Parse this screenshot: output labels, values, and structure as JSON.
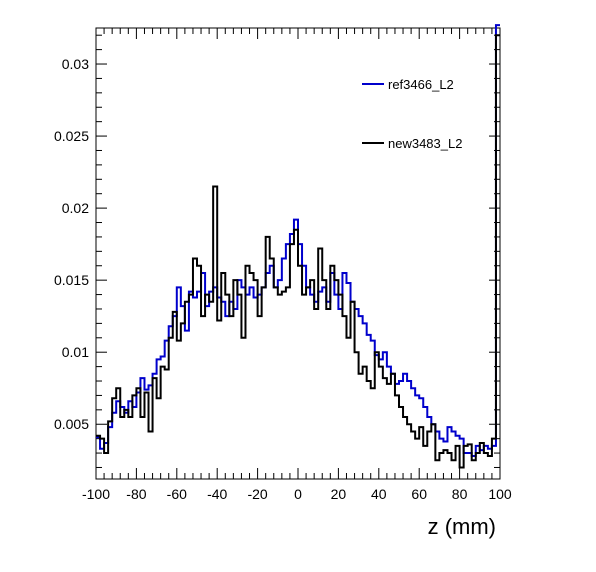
{
  "chart_data": {
    "type": "line",
    "title": "",
    "xlabel": "z (mm)",
    "ylabel": "",
    "xlim": [
      -100,
      100
    ],
    "ylim": [
      0.0012,
      0.0325
    ],
    "x_ticks": [
      -100,
      -80,
      -60,
      -40,
      -20,
      0,
      20,
      40,
      60,
      80,
      100
    ],
    "x_tick_labels": [
      "-100",
      "-80",
      "-60",
      "-40",
      "-20",
      "0",
      "20",
      "40",
      "60",
      "80",
      "100"
    ],
    "y_ticks": [
      0.005,
      0.01,
      0.015,
      0.02,
      0.025,
      0.03
    ],
    "y_tick_labels": [
      "0.005",
      "0.01",
      "0.015",
      "0.02",
      "0.025",
      "0.03"
    ],
    "legend_position": "top-right",
    "bin_width": 2,
    "bin_edges_start": -100,
    "series": [
      {
        "name": "ref3466_L2",
        "color": "#0000cc",
        "values": [
          0.0041,
          0.0033,
          0.0037,
          0.0048,
          0.0058,
          0.0066,
          0.0062,
          0.0058,
          0.0066,
          0.0062,
          0.0072,
          0.0082,
          0.0074,
          0.0077,
          0.0085,
          0.0095,
          0.0097,
          0.0108,
          0.0118,
          0.0125,
          0.0145,
          0.0132,
          0.0115,
          0.0142,
          0.0138,
          0.0142,
          0.0155,
          0.0132,
          0.0142,
          0.0145,
          0.0138,
          0.0135,
          0.0125,
          0.0135,
          0.013,
          0.015,
          0.0145,
          0.014,
          0.0145,
          0.0138,
          0.014,
          0.0145,
          0.0155,
          0.016,
          0.0145,
          0.015,
          0.0165,
          0.0175,
          0.0182,
          0.0192,
          0.0175,
          0.016,
          0.0145,
          0.014,
          0.0135,
          0.0142,
          0.0145,
          0.0135,
          0.0155,
          0.014,
          0.013,
          0.0155,
          0.0148,
          0.0135,
          0.013,
          0.0125,
          0.012,
          0.0112,
          0.0108,
          0.0098,
          0.0095,
          0.01,
          0.009,
          0.0085,
          0.0078,
          0.008,
          0.0085,
          0.008,
          0.0075,
          0.007,
          0.0068,
          0.0062,
          0.0055,
          0.005,
          0.0045,
          0.004,
          0.0038,
          0.0048,
          0.0045,
          0.0042,
          0.004,
          0.003,
          0.003,
          0.0028,
          0.0035,
          0.0032,
          0.0035,
          0.0033,
          0.0035,
          0.0327
        ]
      },
      {
        "name": "new3483_L2",
        "color": "#000000",
        "values": [
          0.0042,
          0.004,
          0.003,
          0.0052,
          0.0068,
          0.0075,
          0.0055,
          0.006,
          0.0055,
          0.007,
          0.0075,
          0.0055,
          0.0072,
          0.0045,
          0.0082,
          0.0068,
          0.009,
          0.0088,
          0.011,
          0.0128,
          0.0108,
          0.012,
          0.0135,
          0.014,
          0.0165,
          0.016,
          0.0125,
          0.014,
          0.0135,
          0.0215,
          0.0122,
          0.0155,
          0.014,
          0.0125,
          0.015,
          0.014,
          0.011,
          0.016,
          0.0155,
          0.015,
          0.0125,
          0.0145,
          0.018,
          0.0165,
          0.0145,
          0.014,
          0.0142,
          0.0145,
          0.0175,
          0.0185,
          0.016,
          0.014,
          0.0145,
          0.015,
          0.013,
          0.0172,
          0.015,
          0.013,
          0.016,
          0.015,
          0.014,
          0.0125,
          0.011,
          0.0135,
          0.01,
          0.0085,
          0.009,
          0.008,
          0.0075,
          0.01,
          0.009,
          0.0082,
          0.0078,
          0.0085,
          0.007,
          0.0062,
          0.0055,
          0.005,
          0.0045,
          0.004,
          0.0048,
          0.0035,
          0.0045,
          0.005,
          0.0025,
          0.003,
          0.0032,
          0.003,
          0.0025,
          0.0035,
          0.002,
          0.0035,
          0.0036,
          0.0025,
          0.003,
          0.0037,
          0.003,
          0.0028,
          0.004,
          0.032
        ]
      }
    ]
  }
}
